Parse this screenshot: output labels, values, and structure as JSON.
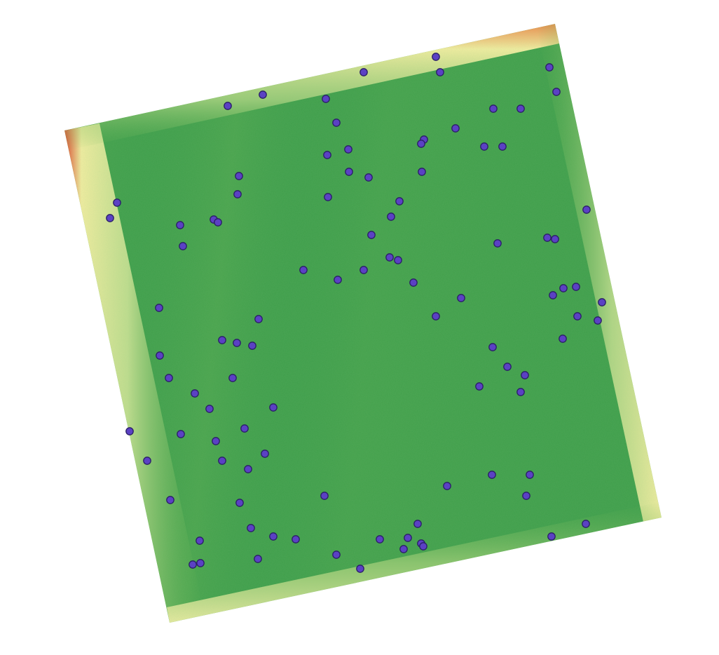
{
  "map": {
    "field_colors": {
      "center": "#3e9e4a",
      "mid": "#5fb04c",
      "edge_light": "#d8e89a",
      "edge_yellow": "#f3eda0",
      "edge_red": "#e0452a"
    },
    "point_style": {
      "fill": "#5b41c4",
      "stroke": "#2a1f66"
    },
    "point_count": 106
  }
}
